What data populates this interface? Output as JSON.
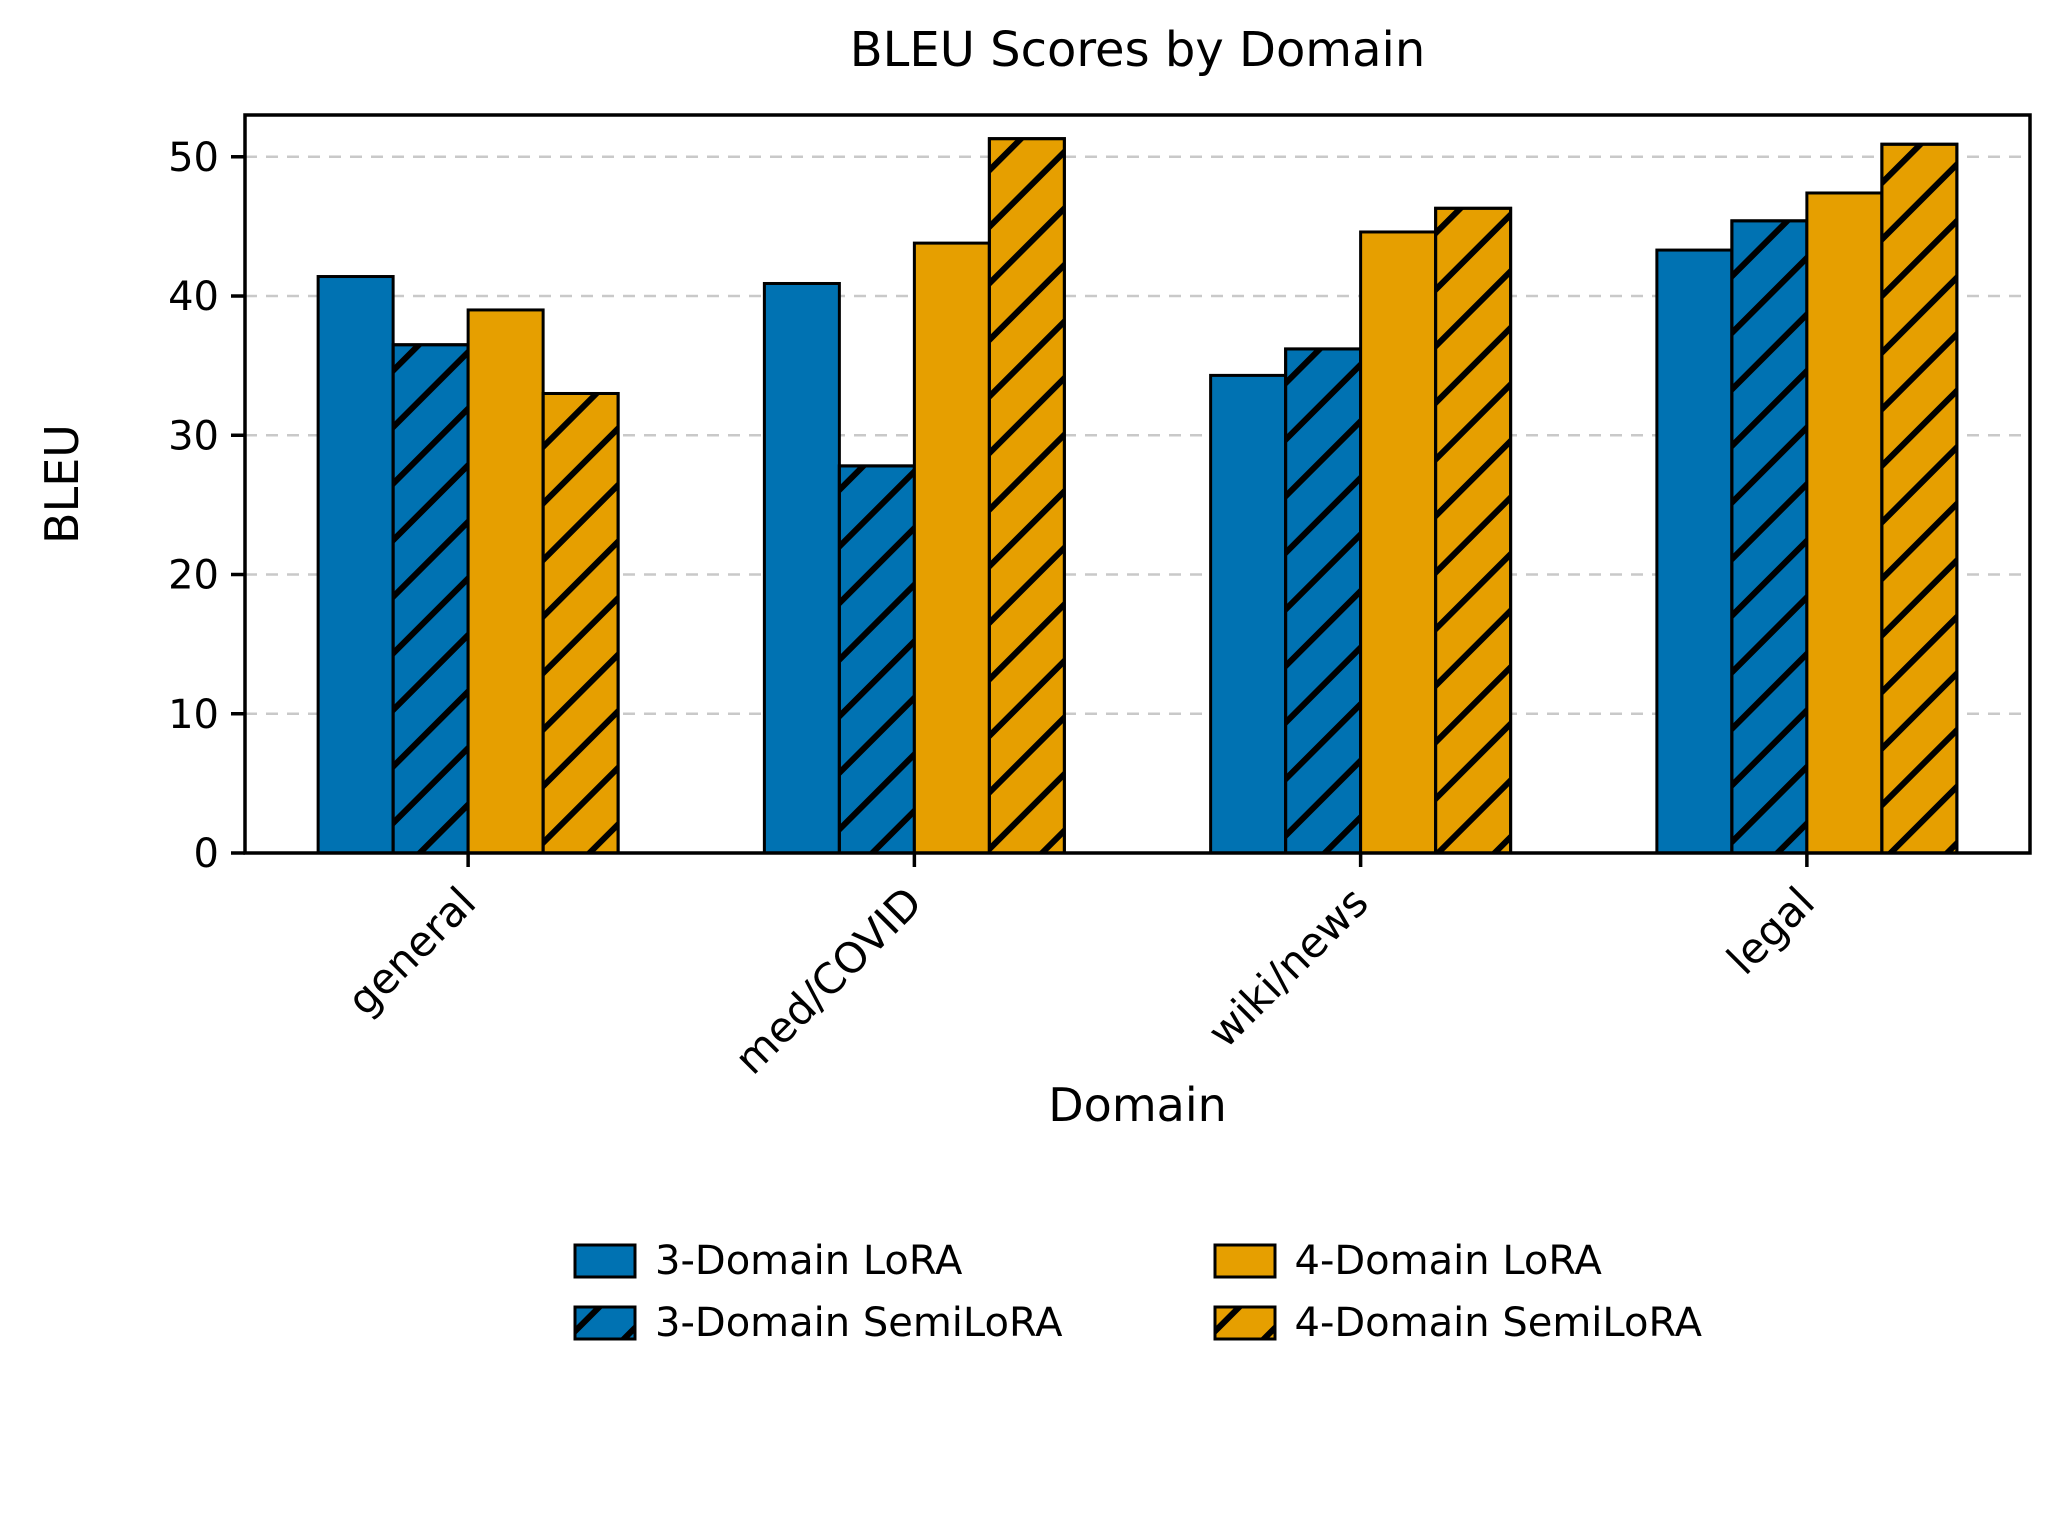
{
  "chart_data": {
    "type": "bar",
    "title": "BLEU Scores by Domain",
    "xlabel": "Domain",
    "ylabel": "BLEU",
    "categories": [
      "general",
      "med/COVID",
      "wiki/news",
      "legal"
    ],
    "series": [
      {
        "name": "3-Domain LoRA",
        "color": "#0072B2",
        "hatch": false,
        "values": [
          41.4,
          40.9,
          34.3,
          43.3
        ]
      },
      {
        "name": "3-Domain SemiLoRA",
        "color": "#0072B2",
        "hatch": true,
        "values": [
          36.5,
          27.8,
          36.2,
          45.4
        ]
      },
      {
        "name": "4-Domain LoRA",
        "color": "#E69F00",
        "hatch": false,
        "values": [
          39.0,
          43.8,
          44.6,
          47.4
        ]
      },
      {
        "name": "4-Domain SemiLoRA",
        "color": "#E69F00",
        "hatch": true,
        "values": [
          33.0,
          51.3,
          46.3,
          50.9
        ]
      }
    ],
    "ylim": [
      0,
      53
    ],
    "yticks": [
      0,
      10,
      20,
      30,
      40,
      50
    ],
    "grid": true,
    "grid_style": "dashed",
    "hatch_pattern": "/",
    "bar_edge_color": "#000000",
    "legend_position": "below-center-2-columns"
  }
}
